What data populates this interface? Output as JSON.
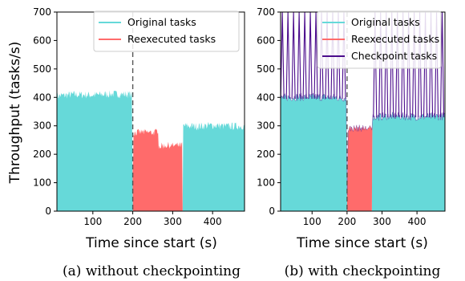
{
  "figure": {
    "ylabel": "Throughput (tasks/s)",
    "captions": [
      "(a) without checkpointing",
      "(b) with checkpointing"
    ]
  },
  "colors": {
    "original": "#66d9d9",
    "reexecuted": "#ff6b6b",
    "checkpoint": "#4b0c8c",
    "marker_line": "#555555"
  },
  "chart_data": [
    {
      "type": "area",
      "title": "",
      "xlabel": "Time since start (s)",
      "ylabel": "Throughput (tasks/s)",
      "xlim": [
        10,
        480
      ],
      "ylim": [
        0,
        700
      ],
      "xticks": [
        100,
        200,
        300,
        400
      ],
      "yticks": [
        0,
        100,
        200,
        300,
        400,
        500,
        600,
        700
      ],
      "vline_x": 200,
      "grid": false,
      "legend": "top-right",
      "series": [
        {
          "name": "Original tasks",
          "color_key": "original",
          "points": [
            [
              10,
              405
            ],
            [
              50,
              410
            ],
            [
              100,
              408
            ],
            [
              150,
              412
            ],
            [
              198,
              410
            ],
            [
              200,
              0
            ],
            [
              201,
              0
            ],
            [
              325,
              0
            ],
            [
              326,
              300
            ],
            [
              360,
              298
            ],
            [
              400,
              302
            ],
            [
              440,
              298
            ],
            [
              480,
              300
            ]
          ]
        },
        {
          "name": "Reexecuted tasks",
          "color_key": "reexecuted",
          "points": [
            [
              10,
              0
            ],
            [
              200,
              0
            ],
            [
              201,
              275
            ],
            [
              220,
              278
            ],
            [
              255,
              276
            ],
            [
              264,
              285
            ],
            [
              265,
              228
            ],
            [
              290,
              232
            ],
            [
              300,
              230
            ],
            [
              324,
              232
            ],
            [
              325,
              0
            ],
            [
              480,
              0
            ]
          ]
        }
      ]
    },
    {
      "type": "area",
      "title": "",
      "xlabel": "Time since start (s)",
      "ylabel": "",
      "xlim": [
        10,
        480
      ],
      "ylim": [
        0,
        700
      ],
      "xticks": [
        100,
        200,
        300,
        400
      ],
      "yticks": [
        0,
        100,
        200,
        300,
        400,
        500,
        600,
        700
      ],
      "vline_x": 200,
      "grid": false,
      "legend": "top-right",
      "series": [
        {
          "name": "Original tasks",
          "color_key": "original",
          "points": [
            [
              10,
              400
            ],
            [
              100,
              402
            ],
            [
              198,
              398
            ],
            [
              200,
              0
            ],
            [
              203,
              0
            ],
            [
              271,
              0
            ],
            [
              272,
              330
            ],
            [
              320,
              335
            ],
            [
              400,
              332
            ],
            [
              480,
              334
            ]
          ]
        },
        {
          "name": "Reexecuted tasks",
          "color_key": "reexecuted",
          "points": [
            [
              10,
              0
            ],
            [
              200,
              0
            ],
            [
              203,
              290
            ],
            [
              230,
              292
            ],
            [
              271,
              290
            ],
            [
              272,
              0
            ],
            [
              480,
              0
            ]
          ]
        },
        {
          "name": "Checkpoint tasks",
          "color_key": "checkpoint",
          "baseline_y": 395,
          "spikes_x": [
            15,
            31,
            47,
            63,
            79,
            95,
            111,
            127,
            143,
            159,
            175,
            191
          ],
          "spike_y": 700,
          "spikes_late_x": [
            280,
            296,
            312,
            328,
            344,
            360,
            376,
            392,
            408,
            424,
            440,
            456,
            472
          ],
          "spike_late_y": 700
        }
      ]
    }
  ]
}
